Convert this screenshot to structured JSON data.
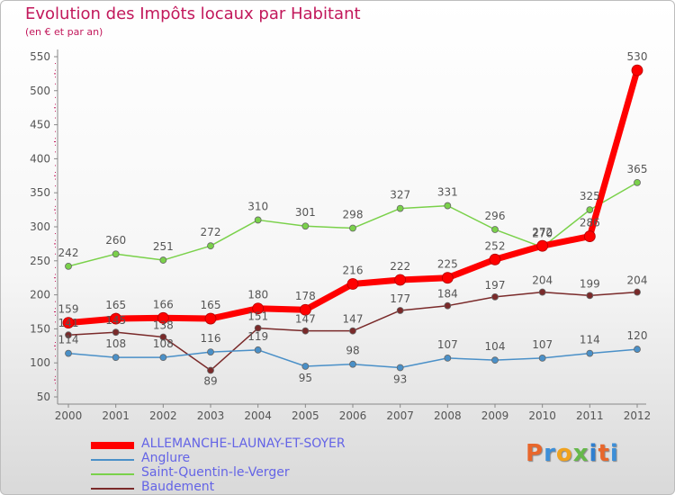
{
  "page": {
    "title": "Evolution des Impôts locaux par Habitant",
    "subtitle": "(en € et par an)"
  },
  "logo": {
    "letters": [
      "P",
      "r",
      "o",
      "x",
      "i",
      "t",
      "i"
    ]
  },
  "chart_data": {
    "type": "line",
    "title": "Evolution des Impôts locaux par Habitant",
    "subtitle": "(en € et par an)",
    "xlabel": "",
    "ylabel": "",
    "x": [
      "2000",
      "2001",
      "2002",
      "2003",
      "2004",
      "2005",
      "2006",
      "2007",
      "2008",
      "2009",
      "2010",
      "2011",
      "2012"
    ],
    "ylim": [
      50,
      550
    ],
    "yticks": [
      50,
      100,
      150,
      200,
      250,
      300,
      350,
      400,
      450,
      500,
      550
    ],
    "grid": false,
    "legend_position": "bottom-left",
    "series": [
      {
        "name": "Baudement",
        "color": "#7a2a2a",
        "values": [
          141,
          145,
          138,
          89,
          151,
          147,
          147,
          177,
          184,
          197,
          204,
          199,
          204
        ]
      },
      {
        "name": "Anglure",
        "color": "#4a90c8",
        "values": [
          114,
          108,
          108,
          116,
          119,
          95,
          98,
          93,
          107,
          104,
          107,
          114,
          120
        ]
      },
      {
        "name": "Saint-Quentin-le-Verger",
        "color": "#7ad14a",
        "values": [
          242,
          260,
          251,
          272,
          310,
          301,
          298,
          327,
          331,
          296,
          270,
          325,
          365
        ]
      },
      {
        "name": "ALLEMANCHE-LAUNAY-ET-SOYER",
        "color": "#ff0000",
        "values": [
          159,
          165,
          166,
          165,
          180,
          178,
          216,
          222,
          225,
          252,
          272,
          286,
          530
        ]
      }
    ],
    "legend": [
      "ALLEMANCHE-LAUNAY-ET-SOYER",
      "Anglure",
      "Saint-Quentin-le-Verger",
      "Baudement"
    ]
  }
}
